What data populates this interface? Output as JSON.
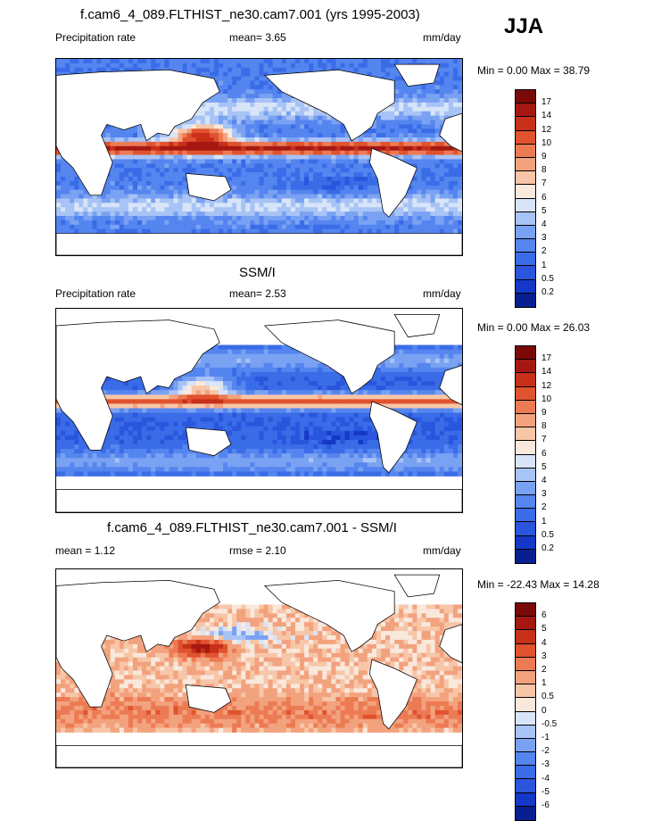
{
  "season": "JJA",
  "panels": [
    {
      "title": "f.cam6_4_089.FLTHIST_ne30.cam7.001 (yrs 1995-2003)",
      "left_label": "Precipitation rate",
      "center_label": "mean=   3.65",
      "units": "mm/day",
      "minmax": "Min =   0.00 Max =  38.79"
    },
    {
      "title": "SSM/I",
      "left_label": "Precipitation rate",
      "center_label": "mean=   2.53",
      "units": "mm/day",
      "minmax": "Min =   0.00 Max =  26.03"
    },
    {
      "title": "f.cam6_4_089.FLTHIST_ne30.cam7.001 - SSM/I",
      "left_label": "mean =   1.12",
      "center_label": "rmse =   2.10",
      "units": "mm/day",
      "minmax": "Min = -22.43 Max =  14.28"
    }
  ],
  "chart_data": [
    {
      "type": "heatmap",
      "title": "f.cam6_4_089.FLTHIST_ne30.cam7.001 (yrs 1995-2003)",
      "variable": "Precipitation rate",
      "units": "mm/day",
      "mean": 3.65,
      "min": 0.0,
      "max": 38.79,
      "colorbar_labels": [
        "0.2",
        "0.5",
        "1",
        "2",
        "3",
        "4",
        "5",
        "6",
        "7",
        "8",
        "9",
        "10",
        "12",
        "14",
        "17"
      ],
      "colorbar_colors": [
        "#0a1f8f",
        "#1538c8",
        "#2a55dd",
        "#3a6ce8",
        "#5585ef",
        "#7aa2f2",
        "#a8c3f5",
        "#d8e5f8",
        "#f9e8dc",
        "#f7c6a8",
        "#f3a27e",
        "#ec7b54",
        "#e0532e",
        "#c8301a",
        "#a51812",
        "#7a0a08"
      ]
    },
    {
      "type": "heatmap",
      "title": "SSM/I",
      "variable": "Precipitation rate",
      "units": "mm/day",
      "mean": 2.53,
      "min": 0.0,
      "max": 26.03,
      "colorbar_labels": [
        "0.2",
        "0.5",
        "1",
        "2",
        "3",
        "4",
        "5",
        "6",
        "7",
        "8",
        "9",
        "10",
        "12",
        "14",
        "17"
      ],
      "colorbar_colors": [
        "#0a1f8f",
        "#1538c8",
        "#2a55dd",
        "#3a6ce8",
        "#5585ef",
        "#7aa2f2",
        "#a8c3f5",
        "#d8e5f8",
        "#f9e8dc",
        "#f7c6a8",
        "#f3a27e",
        "#ec7b54",
        "#e0532e",
        "#c8301a",
        "#a51812",
        "#7a0a08"
      ]
    },
    {
      "type": "heatmap",
      "title": "f.cam6_4_089.FLTHIST_ne30.cam7.001 - SSM/I",
      "units": "mm/day",
      "mean": 1.12,
      "rmse": 2.1,
      "min": -22.43,
      "max": 14.28,
      "colorbar_labels": [
        "-6",
        "-5",
        "-4",
        "-3",
        "-2",
        "-1",
        "-0.5",
        "0",
        "0.5",
        "1",
        "2",
        "3",
        "4",
        "5",
        "6"
      ],
      "colorbar_colors": [
        "#0a1f8f",
        "#1538c8",
        "#2a55dd",
        "#3a6ce8",
        "#5585ef",
        "#7aa2f2",
        "#a8c3f5",
        "#d8e5f8",
        "#f9e8dc",
        "#f7c6a8",
        "#f3a27e",
        "#ec7b54",
        "#e0532e",
        "#c8301a",
        "#a51812",
        "#7a0a08"
      ]
    }
  ]
}
